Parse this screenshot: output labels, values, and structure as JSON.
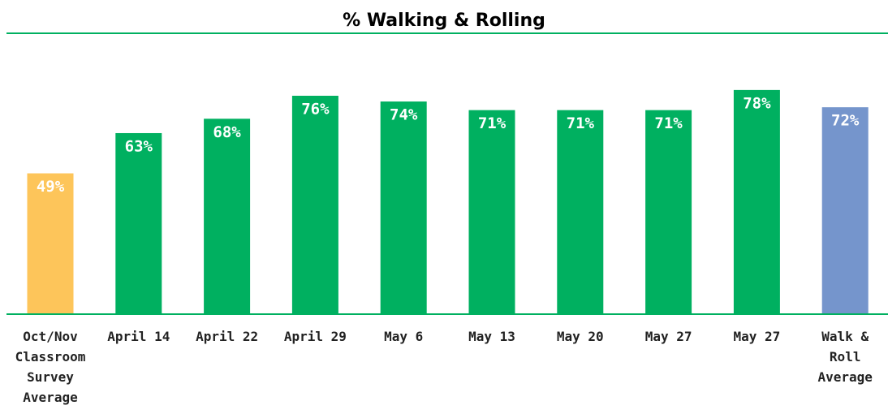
{
  "chart_data": {
    "type": "bar",
    "title": "% Walking & Rolling",
    "categories": [
      "Oct/Nov Classroom Survey Average",
      "April 14",
      "April 22",
      "April 29",
      "May 6",
      "May 13",
      "May 20",
      "May 27",
      "May 27",
      "Walk & Roll Average"
    ],
    "values": [
      49,
      63,
      68,
      76,
      74,
      71,
      71,
      71,
      78,
      72
    ],
    "value_labels": [
      "49%",
      "63%",
      "68%",
      "76%",
      "74%",
      "71%",
      "71%",
      "71%",
      "78%",
      "72%"
    ],
    "colors": [
      "#fdc55a",
      "#00b060",
      "#00b060",
      "#00b060",
      "#00b060",
      "#00b060",
      "#00b060",
      "#00b060",
      "#00b060",
      "#7595cc"
    ],
    "ylim": [
      0,
      100
    ]
  }
}
